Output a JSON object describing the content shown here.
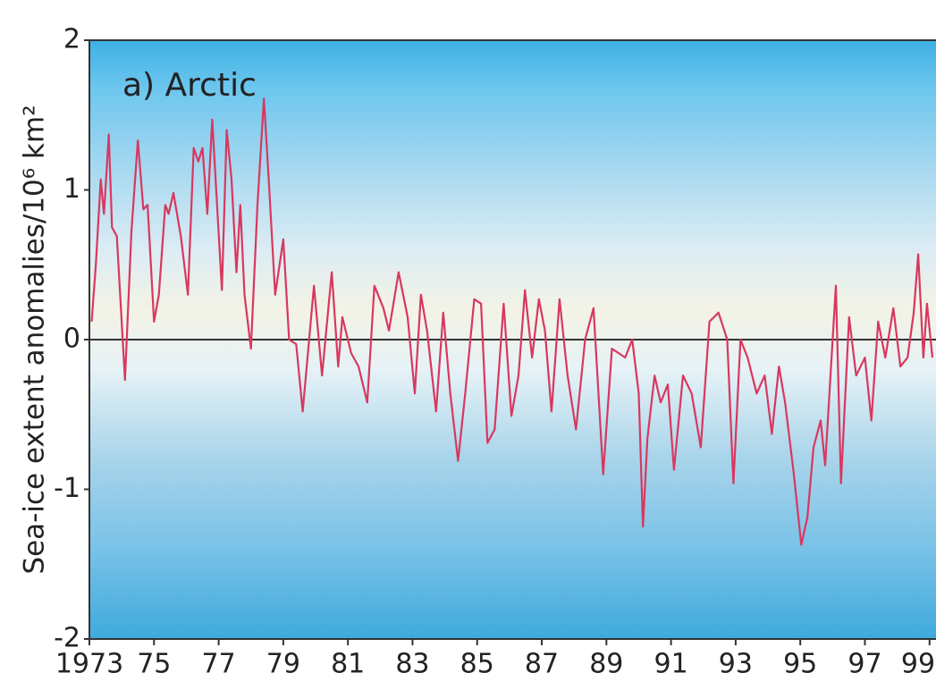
{
  "chart_data": {
    "type": "line",
    "annotation": "a) Arctic",
    "y_label": "Sea-ice extent anomalies/10⁶ km²",
    "xlim": [
      1973,
      1999.2
    ],
    "ylim": [
      -2,
      2
    ],
    "yticks": [
      -2,
      -1,
      0,
      1,
      2
    ],
    "xticks": [
      1973,
      {
        "value": 1975,
        "label": "75"
      },
      {
        "value": 1977,
        "label": "77"
      },
      {
        "value": 1979,
        "label": "79"
      },
      {
        "value": 1981,
        "label": "81"
      },
      {
        "value": 1983,
        "label": "83"
      },
      {
        "value": 1985,
        "label": "85"
      },
      {
        "value": 1987,
        "label": "87"
      },
      {
        "value": 1989,
        "label": "89"
      },
      {
        "value": 1991,
        "label": "91"
      },
      {
        "value": 1993,
        "label": "93"
      },
      {
        "value": 1995,
        "label": "95"
      },
      {
        "value": 1997,
        "label": "97"
      },
      {
        "value": 1999,
        "label": "99"
      }
    ],
    "zero_line": true,
    "series": [
      {
        "color": "#d8385f",
        "x": [
          1973.07,
          1973.2,
          1973.35,
          1973.45,
          1973.6,
          1973.7,
          1973.85,
          1974.1,
          1974.3,
          1974.5,
          1974.67,
          1974.8,
          1975.0,
          1975.15,
          1975.35,
          1975.45,
          1975.6,
          1975.83,
          1976.05,
          1976.23,
          1976.37,
          1976.5,
          1976.65,
          1976.8,
          1976.95,
          1977.1,
          1977.25,
          1977.4,
          1977.55,
          1977.67,
          1977.8,
          1978.0,
          1978.2,
          1978.4,
          1978.55,
          1978.75,
          1979.0,
          1979.18,
          1979.4,
          1979.6,
          1979.95,
          1980.2,
          1980.5,
          1980.7,
          1980.83,
          1981.1,
          1981.33,
          1981.6,
          1981.82,
          1982.1,
          1982.27,
          1982.57,
          1982.85,
          1983.07,
          1983.26,
          1983.45,
          1983.73,
          1983.95,
          1984.17,
          1984.41,
          1984.63,
          1984.91,
          1985.12,
          1985.32,
          1985.54,
          1985.82,
          1986.06,
          1986.28,
          1986.48,
          1986.7,
          1986.91,
          1987.1,
          1987.3,
          1987.55,
          1987.8,
          1988.06,
          1988.34,
          1988.6,
          1988.9,
          1989.17,
          1989.58,
          1989.8,
          1990.0,
          1990.13,
          1990.27,
          1990.49,
          1990.68,
          1990.9,
          1991.09,
          1991.37,
          1991.64,
          1991.92,
          1992.19,
          1992.47,
          1992.74,
          1992.93,
          1993.15,
          1993.37,
          1993.65,
          1993.9,
          1994.12,
          1994.34,
          1994.53,
          1994.8,
          1995.03,
          1995.22,
          1995.41,
          1995.63,
          1995.77,
          1996.1,
          1996.26,
          1996.51,
          1996.73,
          1997.0,
          1997.2,
          1997.41,
          1997.63,
          1997.88,
          1998.1,
          1998.32,
          1998.51,
          1998.65,
          1998.81,
          1998.92,
          1999.09
        ],
        "values": [
          0.12,
          0.5,
          1.07,
          0.84,
          1.37,
          0.75,
          0.69,
          -0.27,
          0.72,
          1.33,
          0.87,
          0.9,
          0.12,
          0.3,
          0.9,
          0.84,
          0.98,
          0.69,
          0.3,
          1.28,
          1.19,
          1.28,
          0.84,
          1.47,
          0.9,
          0.33,
          1.4,
          1.07,
          0.45,
          0.9,
          0.3,
          -0.06,
          0.9,
          1.61,
          1.07,
          0.3,
          0.67,
          0.0,
          -0.03,
          -0.48,
          0.36,
          -0.24,
          0.45,
          -0.18,
          0.15,
          -0.09,
          -0.18,
          -0.42,
          0.36,
          0.21,
          0.06,
          0.45,
          0.15,
          -0.36,
          0.3,
          0.06,
          -0.48,
          0.18,
          -0.36,
          -0.81,
          -0.36,
          0.27,
          0.24,
          -0.69,
          -0.6,
          0.24,
          -0.51,
          -0.24,
          0.33,
          -0.12,
          0.27,
          0.06,
          -0.48,
          0.27,
          -0.24,
          -0.6,
          0.0,
          0.21,
          -0.9,
          -0.06,
          -0.12,
          0.0,
          -0.36,
          -1.25,
          -0.66,
          -0.24,
          -0.42,
          -0.3,
          -0.87,
          -0.24,
          -0.36,
          -0.72,
          0.12,
          0.18,
          0.0,
          -0.96,
          0.0,
          -0.12,
          -0.36,
          -0.24,
          -0.63,
          -0.18,
          -0.42,
          -0.9,
          -1.37,
          -1.19,
          -0.72,
          -0.54,
          -0.84,
          0.36,
          -0.96,
          0.15,
          -0.24,
          -0.12,
          -0.54,
          0.12,
          -0.12,
          0.21,
          -0.18,
          -0.12,
          0.18,
          0.57,
          -0.12,
          0.24,
          -0.12
        ]
      }
    ]
  }
}
